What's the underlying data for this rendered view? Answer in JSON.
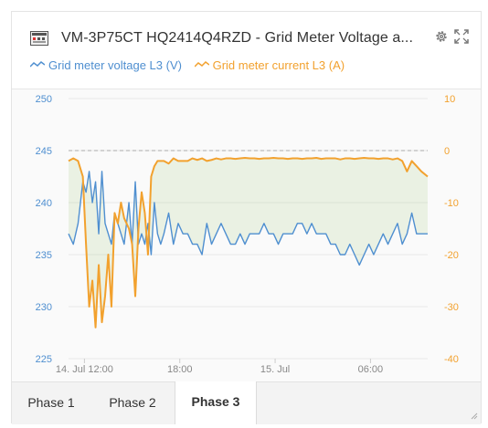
{
  "widget": {
    "title": "VM-3P75CT HQ2414Q4RZD - Grid Meter Voltage a...",
    "icons": {
      "meter": "meter-icon",
      "settings": "gear-icon",
      "expand": "expand-icon"
    },
    "tabs": [
      {
        "label": "Phase 1",
        "active": false
      },
      {
        "label": "Phase 2",
        "active": false
      },
      {
        "label": "Phase 3",
        "active": true
      }
    ]
  },
  "legend": [
    {
      "label": "Grid meter voltage L3 (V)",
      "color": "#4f8fd0"
    },
    {
      "label": "Grid meter current L3 (A)",
      "color": "#f2a12e"
    }
  ],
  "chart_data": {
    "type": "line",
    "x_ticks": [
      "14. Jul 12:00",
      "18:00",
      "15. Jul",
      "06:00"
    ],
    "x_tick_hours": [
      12,
      18,
      24,
      30
    ],
    "x_range_hours": [
      11.0,
      33.6
    ],
    "y_left": {
      "ticks": [
        "225",
        "230",
        "235",
        "240",
        "245",
        "250"
      ],
      "range": [
        225,
        250
      ]
    },
    "y_right": {
      "ticks": [
        "-40",
        "-30",
        "-20",
        "-10",
        "0",
        "10"
      ],
      "range": [
        -40,
        10
      ]
    },
    "reference_line_right": 0,
    "series": [
      {
        "name": "Grid meter voltage L3 (V)",
        "axis": "left",
        "color": "#4f8fd0",
        "x": [
          11.0,
          11.3,
          11.6,
          11.9,
          12.1,
          12.3,
          12.5,
          12.7,
          12.9,
          13.1,
          13.3,
          13.5,
          13.7,
          13.9,
          14.1,
          14.3,
          14.5,
          14.8,
          15.0,
          15.2,
          15.4,
          15.6,
          15.8,
          16.0,
          16.2,
          16.4,
          16.6,
          16.8,
          17.0,
          17.3,
          17.6,
          17.9,
          18.2,
          18.5,
          18.8,
          19.1,
          19.4,
          19.7,
          20.0,
          20.3,
          20.6,
          20.9,
          21.2,
          21.5,
          21.8,
          22.1,
          22.4,
          22.7,
          23.0,
          23.3,
          23.6,
          23.9,
          24.2,
          24.5,
          24.8,
          25.1,
          25.4,
          25.7,
          26.0,
          26.3,
          26.6,
          26.9,
          27.2,
          27.5,
          27.8,
          28.1,
          28.4,
          28.7,
          29.0,
          29.3,
          29.6,
          29.9,
          30.2,
          30.5,
          30.8,
          31.1,
          31.4,
          31.7,
          32.0,
          32.3,
          32.6,
          32.9,
          33.2,
          33.6
        ],
        "values": [
          237,
          236,
          238,
          242,
          241,
          243,
          240,
          242,
          237,
          243,
          238,
          237,
          236,
          239,
          238,
          237,
          236,
          240,
          236,
          242,
          236,
          237,
          236,
          238,
          235,
          240,
          237,
          236,
          237,
          239,
          236,
          238,
          237,
          237,
          236,
          236,
          235,
          238,
          236,
          237,
          238,
          237,
          236,
          236,
          237,
          236,
          237,
          237,
          237,
          238,
          237,
          237,
          236,
          237,
          237,
          237,
          238,
          238,
          237,
          238,
          237,
          237,
          237,
          236,
          236,
          235,
          235,
          236,
          235,
          234,
          235,
          236,
          235,
          236,
          237,
          236,
          237,
          238,
          236,
          237,
          239,
          237,
          237,
          237
        ]
      },
      {
        "name": "Grid meter current L3 (A)",
        "axis": "right",
        "color": "#f2a12e",
        "x": [
          11.0,
          11.3,
          11.6,
          11.9,
          12.1,
          12.3,
          12.5,
          12.7,
          12.9,
          13.1,
          13.3,
          13.5,
          13.7,
          13.9,
          14.1,
          14.3,
          14.5,
          14.8,
          15.0,
          15.2,
          15.4,
          15.6,
          15.8,
          16.0,
          16.2,
          16.4,
          16.6,
          16.8,
          17.0,
          17.3,
          17.6,
          17.9,
          18.2,
          18.5,
          18.8,
          19.1,
          19.4,
          19.7,
          20.0,
          20.3,
          20.6,
          20.9,
          21.2,
          21.5,
          21.8,
          22.1,
          22.4,
          22.7,
          23.0,
          23.3,
          23.6,
          23.9,
          24.2,
          24.5,
          24.8,
          25.1,
          25.4,
          25.7,
          26.0,
          26.3,
          26.6,
          26.9,
          27.2,
          27.5,
          27.8,
          28.1,
          28.4,
          28.7,
          29.0,
          29.3,
          29.6,
          29.9,
          30.2,
          30.5,
          30.8,
          31.1,
          31.4,
          31.7,
          32.0,
          32.3,
          32.6,
          32.9,
          33.2,
          33.6
        ],
        "values": [
          -2,
          -1.5,
          -2,
          -5,
          -18,
          -30,
          -25,
          -34,
          -22,
          -33,
          -28,
          -20,
          -30,
          -12,
          -14,
          -10,
          -13,
          -15,
          -18,
          -28,
          -15,
          -8,
          -12,
          -20,
          -5,
          -3,
          -2,
          -2,
          -2,
          -2.5,
          -1.5,
          -2,
          -2,
          -2,
          -1.5,
          -1.8,
          -1.5,
          -2,
          -1.8,
          -1.5,
          -1.7,
          -1.5,
          -1.5,
          -1.6,
          -1.5,
          -1.4,
          -1.5,
          -1.5,
          -1.6,
          -1.5,
          -1.5,
          -1.4,
          -1.5,
          -1.5,
          -1.6,
          -1.5,
          -1.5,
          -1.6,
          -1.5,
          -1.5,
          -1.4,
          -1.6,
          -1.5,
          -1.5,
          -1.5,
          -1.7,
          -1.5,
          -1.5,
          -1.6,
          -1.5,
          -1.4,
          -1.5,
          -1.5,
          -1.6,
          -1.5,
          -1.5,
          -1.7,
          -1.5,
          -2,
          -4,
          -2,
          -3,
          -4,
          -5
        ]
      }
    ]
  }
}
